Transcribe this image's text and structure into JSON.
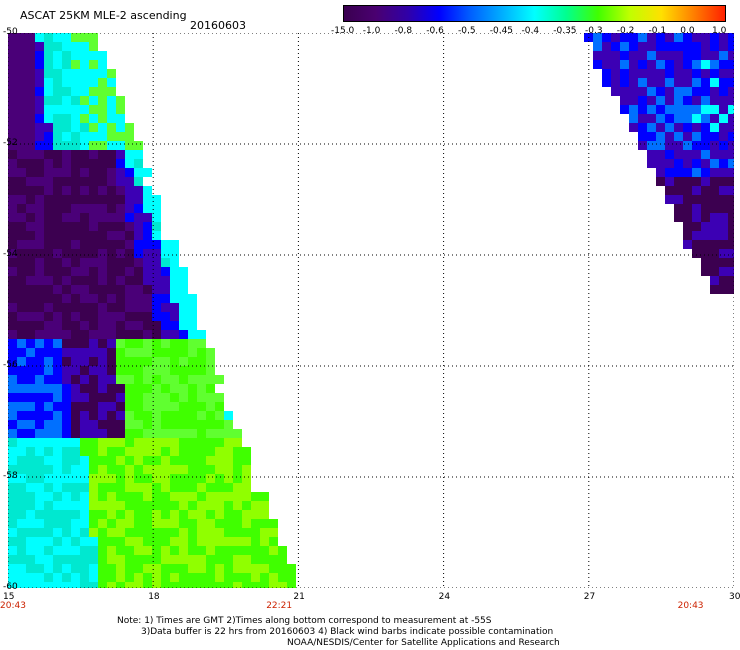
{
  "title": "ASCAT 25KM MLE-2 ascending",
  "date": "20160603",
  "colorbar": {
    "ticks": [
      "-15.0",
      "-1.0",
      "-0.8",
      "-0.6",
      "-0.5",
      "-0.45",
      "-0.4",
      "-0.35",
      "-0.3",
      "-0.2",
      "-0.1",
      "0.0",
      "1.0"
    ],
    "colors": [
      "#3a0050",
      "#4a0070",
      "#3000a8",
      "#0000ff",
      "#0060ff",
      "#00b0ff",
      "#00ffff",
      "#00ff90",
      "#40ff00",
      "#c0ff00",
      "#ffe000",
      "#ff8000",
      "#ff2000"
    ]
  },
  "map": {
    "lat_labels": [
      "-50",
      "-52",
      "-54",
      "-56",
      "-58",
      "-60"
    ],
    "lon_labels": [
      "15",
      "18",
      "21",
      "24",
      "27",
      "30"
    ],
    "lat_range": [
      -60,
      -50
    ],
    "lon_range": [
      15,
      30
    ],
    "time_labels": [
      {
        "lon": 15,
        "text": "20:43"
      },
      {
        "lon": 20.5,
        "text": "22:21"
      },
      {
        "lon": 29,
        "text": "20:43"
      }
    ]
  },
  "notes": [
    "Note: 1) Times are GMT 2)Times along bottom correspond to measurement at -55S",
    "3)Data buffer is 22 hrs from 20160603 4) Black wind barbs indicate possible contamination",
    "NOAA/NESDIS/Center for Satellite Applications and Research"
  ]
}
